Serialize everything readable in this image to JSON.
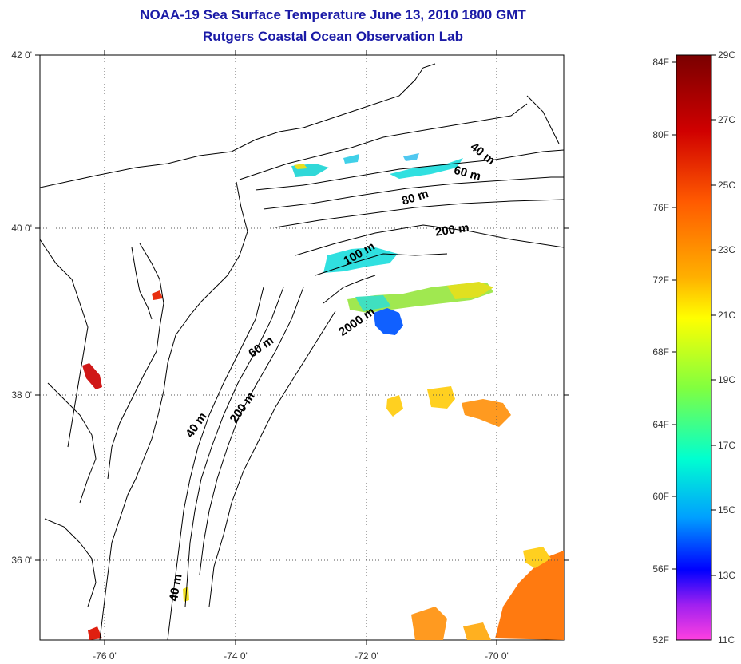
{
  "title": {
    "line1": "NOAA-19 Sea Surface Temperature June 13, 2010 1800 GMT",
    "line2": "Rutgers Coastal Ocean Observation Lab"
  },
  "map": {
    "lat_labels": [
      "42 0'",
      "40 0'",
      "38 0'",
      "36 0'"
    ],
    "lon_labels": [
      "-76 0'",
      "-74 0'",
      "-72 0'",
      "-70 0'"
    ],
    "depth_labels": [
      "40 m",
      "60 m",
      "80 m",
      "200 m",
      "100 m",
      "2000 m",
      "60 m",
      "200 m",
      "40 m",
      "40 m"
    ],
    "coast_color": "#000000",
    "grid": "dotted"
  },
  "colorbar": {
    "fahrenheit_labels": [
      "84F",
      "80F",
      "76F",
      "72F",
      "68F",
      "64F",
      "60F",
      "56F",
      "52F"
    ],
    "celsius_labels": [
      "29C",
      "27C",
      "25C",
      "23C",
      "21C",
      "19C",
      "17C",
      "15C",
      "13C",
      "11C"
    ],
    "colors": [
      "#7a0000",
      "#d00000",
      "#ff5a00",
      "#ffb000",
      "#ffff00",
      "#80ff40",
      "#00ffd0",
      "#00a0ff",
      "#0000ff",
      "#a020f0",
      "#ff40e0"
    ]
  },
  "sst_patches": {
    "warm_offshore": "#ff7a10",
    "mid_offshore": "#ffd020",
    "cool_shelf": "#30e0e0",
    "cold_core": "#1060ff",
    "bay_hot": "#e02010"
  }
}
